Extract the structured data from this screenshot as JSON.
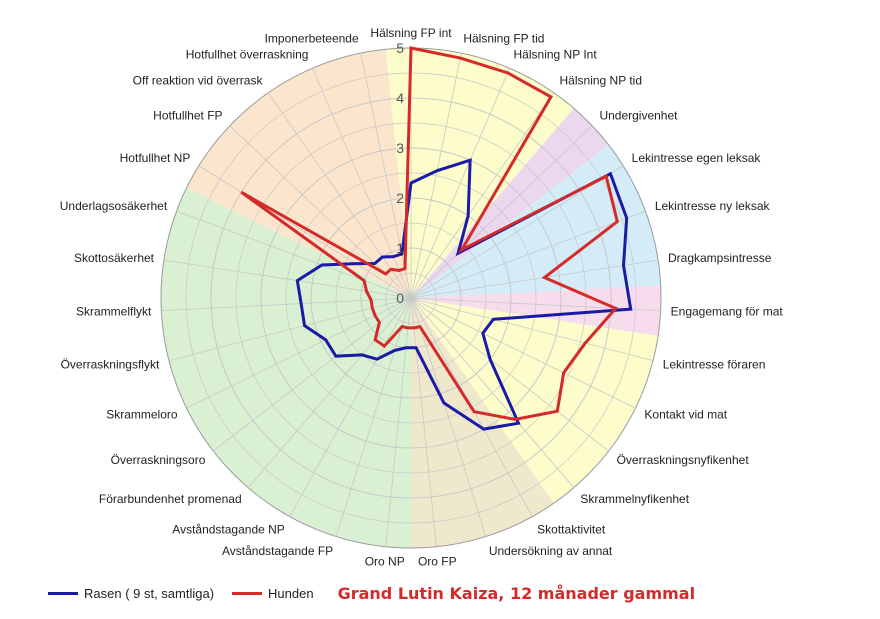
{
  "chart_data": {
    "type": "radar",
    "r_range": [
      0,
      5
    ],
    "r_ticks": [
      "0",
      "1",
      "2",
      "3",
      "4",
      "5"
    ],
    "axes": [
      "Hälsning FP int",
      "Hälsning FP tid",
      "Hälsning NP Int",
      "Hälsning NP tid",
      "Undergivenhet",
      "Lekintresse egen leksak",
      "Lekintresse ny leksak",
      "Dragkampsintresse",
      "Engagemang för mat",
      "Lekintresse föraren",
      "Kontakt vid mat",
      "Överraskningsnyfikenhet",
      "Skrammelnyfikenhet",
      "Skottaktivitet",
      "Undersökning av annat",
      "Oro FP",
      "Oro NP",
      "Avståndstagande FP",
      "Avståndstagande NP",
      "Förarbundenhet promenad",
      "Överraskningsoro",
      "Skrammeloro",
      "Överraskningsflykt",
      "Skrammelflykt",
      "Skottosäkerhet",
      "Underlagsosäkerhet",
      "Hotfullhet NP",
      "Hotfullhet FP",
      "Off reaktion vid överrask",
      "Hotfullhet överraskning",
      "Imponerbeteende"
    ],
    "series": [
      {
        "name": "Rasen ( 9 st, samtliga)",
        "color": "#1a1aa6",
        "values": [
          2.3,
          2.6,
          3.0,
          2.0,
          1.3,
          4.7,
          4.6,
          4.3,
          4.4,
          1.7,
          1.6,
          2.0,
          3.3,
          3.0,
          2.2,
          1.0,
          1.0,
          1.1,
          1.4,
          1.5,
          1.9,
          1.9,
          2.2,
          2.2,
          2.3,
          1.9,
          1.3,
          1.0,
          1.0,
          0.9,
          0.9
        ]
      },
      {
        "name": "Hunden",
        "color": "#d42a2a",
        "values": [
          5.0,
          4.9,
          4.9,
          4.9,
          1.4,
          4.6,
          4.4,
          2.7,
          4.1,
          3.6,
          3.4,
          3.7,
          3.2,
          2.6,
          0.6,
          0.6,
          0.6,
          0.6,
          1.1,
          1.1,
          0.8,
          0.8,
          0.8,
          0.8,
          0.9,
          1.0,
          4.0,
          0.7,
          0.7,
          0.6,
          0.6
        ]
      }
    ],
    "sectors": [
      {
        "from": 0,
        "to": 3,
        "color": "#fdfccb"
      },
      {
        "from": 4,
        "to": 4,
        "color": "#ebd8ee"
      },
      {
        "from": 5,
        "to": 7,
        "color": "#d3ecf7"
      },
      {
        "from": 8,
        "to": 8,
        "color": "#f7dced"
      },
      {
        "from": 9,
        "to": 12,
        "color": "#fdfccb"
      },
      {
        "from": 13,
        "to": 15,
        "color": "#f0e8cc"
      },
      {
        "from": 16,
        "to": 25,
        "color": "#d9f0d3"
      },
      {
        "from": 26,
        "to": 30,
        "color": "#fbe5cc"
      }
    ],
    "grid": true,
    "legend": "bottom-left"
  },
  "subtitle": "Grand Lutin Kaiza, 12 månader gammal",
  "legend_labels": [
    "Rasen ( 9 st, samtliga)",
    "Hunden"
  ]
}
